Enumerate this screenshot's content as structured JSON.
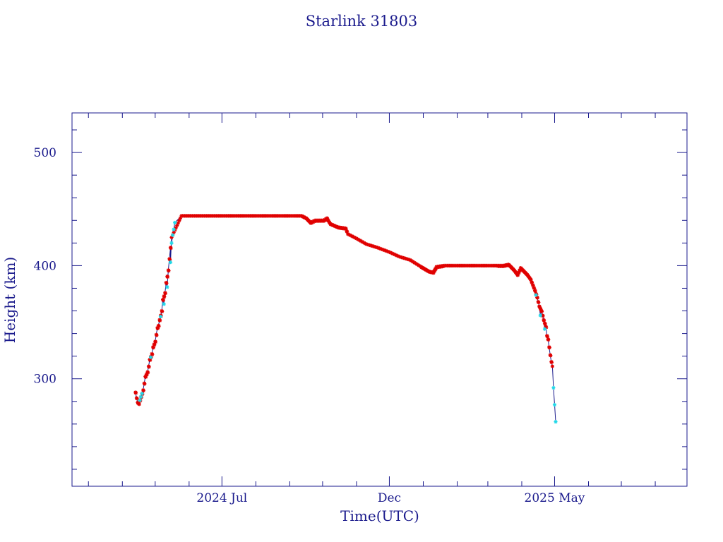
{
  "chart_data": {
    "type": "scatter",
    "title": "Starlink 31803",
    "xlabel": "Time(UTC)",
    "ylabel": "Height (km)",
    "xlim": [
      "2024-02-15",
      "2025-08-30"
    ],
    "ylim": [
      205,
      535
    ],
    "y_ticks": [
      300,
      400,
      500
    ],
    "y_minor_step": 20,
    "x_major_ticks": [
      {
        "date": "2024-07-01",
        "label": "2024 Jul"
      },
      {
        "date": "2024-12-01",
        "label": "Dec"
      },
      {
        "date": "2025-05-01",
        "label": "2025 May"
      }
    ],
    "x_minor_ticks": [
      "2024-03-01",
      "2024-04-01",
      "2024-05-01",
      "2024-06-01",
      "2024-08-01",
      "2024-09-01",
      "2024-10-01",
      "2024-11-01",
      "2025-01-01",
      "2025-02-01",
      "2025-03-01",
      "2025-04-01",
      "2025-06-01",
      "2025-07-01",
      "2025-08-01"
    ],
    "grid": false,
    "colors": {
      "axis": "#1a1a8c",
      "line": "#1a1a8c",
      "red_marker": "#e00000",
      "cyan_marker": "#22d8e8"
    },
    "series": [
      {
        "color": "red",
        "x": [
          "2024-04-13",
          "2024-04-14",
          "2024-04-15",
          "2024-04-16",
          "2024-04-20",
          "2024-04-21",
          "2024-04-22",
          "2024-04-24",
          "2024-04-25",
          "2024-04-26",
          "2024-04-28",
          "2024-04-29",
          "2024-05-01",
          "2024-05-02",
          "2024-05-03",
          "2024-05-04",
          "2024-05-05",
          "2024-05-07",
          "2024-05-08",
          "2024-05-10",
          "2024-05-11",
          "2024-05-13",
          "2024-05-14",
          "2024-05-15",
          "2024-05-16",
          "2024-05-25",
          "2024-06-05",
          "2024-06-15",
          "2024-06-25",
          "2024-07-05",
          "2024-07-15",
          "2024-07-25",
          "2024-08-05",
          "2024-08-15",
          "2024-08-25",
          "2024-09-04",
          "2024-09-12",
          "2024-09-16",
          "2024-09-20",
          "2024-09-24",
          "2024-09-28",
          "2024-10-02",
          "2024-10-05",
          "2024-10-06",
          "2024-10-08",
          "2024-10-15",
          "2024-10-22",
          "2024-10-24",
          "2024-11-01",
          "2024-11-10",
          "2024-11-20",
          "2024-12-01",
          "2024-12-10",
          "2024-12-20",
          "2024-12-30",
          "2025-01-06",
          "2025-01-10",
          "2025-01-13",
          "2025-01-20",
          "2025-01-30",
          "2025-02-10",
          "2025-02-20",
          "2025-03-01",
          "2025-03-10",
          "2025-03-15",
          "2025-03-20",
          "2025-03-25",
          "2025-03-28",
          "2025-03-31",
          "2025-04-03",
          "2025-04-06",
          "2025-04-09",
          "2025-04-13",
          "2025-04-15",
          "2025-04-17",
          "2025-04-19",
          "2025-04-21",
          "2025-04-23",
          "2025-04-24",
          "2025-04-25",
          "2025-04-26",
          "2025-04-27",
          "2025-04-28",
          "2025-04-29"
        ],
        "y": [
          288,
          283,
          279,
          278,
          290,
          296,
          302,
          306,
          311,
          317,
          322,
          328,
          333,
          339,
          345,
          347,
          352,
          360,
          370,
          376,
          385,
          396,
          406,
          416,
          425,
          444,
          444,
          444,
          444,
          444,
          444,
          444,
          444,
          444,
          444,
          444,
          444,
          442,
          438,
          440,
          440,
          440,
          442,
          440,
          437,
          434,
          433,
          428,
          424,
          419,
          416,
          412,
          408,
          405,
          399,
          395,
          394,
          399,
          400,
          400,
          400,
          400,
          400,
          400,
          400,
          401,
          396,
          392,
          398,
          395,
          392,
          388,
          378,
          372,
          364,
          360,
          352,
          346,
          338,
          335,
          328,
          321,
          315,
          311
        ]
      },
      {
        "color": "cyan",
        "x": [
          "2024-04-17",
          "2024-04-18",
          "2024-04-19",
          "2024-04-27",
          "2024-05-06",
          "2024-05-09",
          "2024-05-12",
          "2024-05-15",
          "2024-05-16",
          "2024-05-17",
          "2024-05-18",
          "2024-05-19",
          "2025-04-14",
          "2025-04-18",
          "2025-04-22",
          "2025-04-30",
          "2025-05-01",
          "2025-05-02"
        ],
        "y": [
          281,
          284,
          287,
          319,
          355,
          366,
          381,
          403,
          420,
          427,
          432,
          438,
          374,
          356,
          344,
          292,
          277,
          262
        ]
      }
    ]
  }
}
